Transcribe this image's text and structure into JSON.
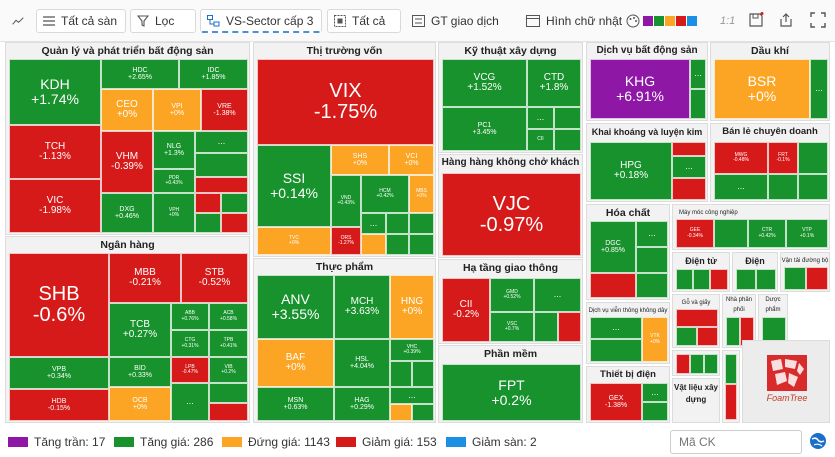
{
  "toolbar": {
    "exchange_label": "Tất cả sàn",
    "filter_label": "Lọc",
    "sector_label": "VS-Sector cấp 3",
    "scope_label": "Tất cả",
    "value_label": "GT giao dịch",
    "shape_label": "Hình chữ nhật",
    "ratio_label": "1:1",
    "palette": [
      "#8e17a6",
      "#17922c",
      "#fca423",
      "#d61a1a",
      "#1a8fe3"
    ]
  },
  "sectors": {
    "real_estate": {
      "title": "Quản lý và phát triển bất động sản",
      "tiles": [
        {
          "ticker": "KDH",
          "change": "+1.74%"
        },
        {
          "ticker": "HDC",
          "change": "+2.65%"
        },
        {
          "ticker": "IDC",
          "change": "+1.85%"
        },
        {
          "ticker": "CEO",
          "change": "+0%"
        },
        {
          "ticker": "VPI",
          "change": "+0%"
        },
        {
          "ticker": "VRE",
          "change": "-1.38%"
        },
        {
          "ticker": "TCH",
          "change": "-1.13%"
        },
        {
          "ticker": "VHM",
          "change": "-0.39%"
        },
        {
          "ticker": "NLG",
          "change": "+1.3%"
        },
        {
          "ticker": "PDR",
          "change": "+0.43%"
        },
        {
          "ticker": "VIC",
          "change": "-1.98%"
        },
        {
          "ticker": "DXG",
          "change": "+0.46%"
        },
        {
          "ticker": "VPH",
          "change": "+0%"
        }
      ]
    },
    "banking": {
      "title": "Ngân hàng",
      "tiles": [
        {
          "ticker": "SHB",
          "change": "-0.6%"
        },
        {
          "ticker": "MBB",
          "change": "-0.21%"
        },
        {
          "ticker": "STB",
          "change": "-0.52%"
        },
        {
          "ticker": "TCB",
          "change": "+0.27%"
        },
        {
          "ticker": "ABB",
          "change": "+0.76%"
        },
        {
          "ticker": "ACB",
          "change": "+0.58%"
        },
        {
          "ticker": "CTG",
          "change": "+0.31%"
        },
        {
          "ticker": "TPB",
          "change": "+0.41%"
        },
        {
          "ticker": "VPB",
          "change": "+0.34%"
        },
        {
          "ticker": "BID",
          "change": "+0.33%"
        },
        {
          "ticker": "LPB",
          "change": "-0.47%"
        },
        {
          "ticker": "VIB",
          "change": "+0.2%"
        },
        {
          "ticker": "HDB",
          "change": "-0.15%"
        },
        {
          "ticker": "OCB",
          "change": "+0%"
        }
      ]
    },
    "securities": {
      "title": "Thị trường vốn",
      "tiles": [
        {
          "ticker": "VIX",
          "change": "-1.75%"
        },
        {
          "ticker": "SSI",
          "change": "+0.14%"
        },
        {
          "ticker": "SHS",
          "change": "+0%"
        },
        {
          "ticker": "VCI",
          "change": "+0%"
        },
        {
          "ticker": "VND",
          "change": "+0.43%"
        },
        {
          "ticker": "HCM",
          "change": "+0.42%"
        },
        {
          "ticker": "MBS",
          "change": "+0%"
        },
        {
          "ticker": "TVC",
          "change": "+0%"
        },
        {
          "ticker": "ORS",
          "change": "-1.27%"
        }
      ]
    },
    "food": {
      "title": "Thực phẩm",
      "tiles": [
        {
          "ticker": "ANV",
          "change": "+3.55%"
        },
        {
          "ticker": "MCH",
          "change": "+3.63%"
        },
        {
          "ticker": "HNG",
          "change": "+0%"
        },
        {
          "ticker": "BAF",
          "change": "+0%"
        },
        {
          "ticker": "HSL",
          "change": "+4.04%"
        },
        {
          "ticker": "VHC",
          "change": "+0.39%"
        },
        {
          "ticker": "MSN",
          "change": "+0.63%"
        },
        {
          "ticker": "HAG",
          "change": "+0.29%"
        }
      ]
    },
    "construction": {
      "title": "Kỹ thuật xây dựng",
      "tiles": [
        {
          "ticker": "VCG",
          "change": "+1.52%"
        },
        {
          "ticker": "CTD",
          "change": "+1.8%"
        },
        {
          "ticker": "PC1",
          "change": "+3.45%"
        },
        {
          "ticker": "CII",
          "change": "+0.5%"
        }
      ]
    },
    "airline": {
      "title": "Hàng hàng không chở khách",
      "tiles": [
        {
          "ticker": "VJC",
          "change": "-0.97%"
        }
      ]
    },
    "transport_infra": {
      "title": "Hạ tầng giao thông",
      "tiles": [
        {
          "ticker": "CII",
          "change": "-0.2%"
        },
        {
          "ticker": "GMD",
          "change": "+0.52%"
        },
        {
          "ticker": "VSC",
          "change": "+0.7%"
        }
      ]
    },
    "software": {
      "title": "Phần mềm",
      "tiles": [
        {
          "ticker": "FPT",
          "change": "+0.2%"
        }
      ]
    },
    "re_services": {
      "title": "Dịch vụ bất động sản",
      "tiles": [
        {
          "ticker": "KHG",
          "change": "+6.91%"
        }
      ]
    },
    "oil_gas": {
      "title": "Dầu khí",
      "tiles": [
        {
          "ticker": "BSR",
          "change": "+0%"
        }
      ]
    },
    "mining": {
      "title": "Khai khoáng và luyện kim",
      "tiles": [
        {
          "ticker": "HPG",
          "change": "+0.18%"
        }
      ]
    },
    "retail": {
      "title": "Bán lẻ chuyên doanh",
      "tiles": [
        {
          "ticker": "MWG",
          "change": "-0.48%"
        },
        {
          "ticker": "FRT",
          "change": "-0.1%"
        }
      ]
    },
    "chemicals": {
      "title": "Hóa chất",
      "tiles": [
        {
          "ticker": "DGC",
          "change": "+0.85%"
        }
      ]
    },
    "industrial_machinery": {
      "title": "Máy móc công nghiệp",
      "tiles": [
        {
          "ticker": "GEE",
          "change": "-0.34%"
        },
        {
          "ticker": "CTR",
          "change": "+0.42%"
        },
        {
          "ticker": "VTP",
          "change": "+0.1%"
        }
      ]
    },
    "electronics": {
      "title": "Điện tử"
    },
    "electricity": {
      "title": "Điện"
    },
    "road_transport": {
      "title": "Vận tải đường bộ"
    },
    "telecom": {
      "title": "Dịch vụ viễn thông không dây",
      "tiles": [
        {
          "ticker": "VTK",
          "change": "+0%"
        }
      ]
    },
    "wood_paper": {
      "title": "Gỗ và giấy"
    },
    "home_builders": {
      "title": "Nhà phân phối"
    },
    "pharma": {
      "title": "Dược phẩm"
    },
    "electrical_equipment": {
      "title": "Thiết bị điện",
      "tiles": [
        {
          "ticker": "GEX",
          "change": "-1.38%"
        }
      ]
    },
    "building_materials": {
      "title": "Vật liệu xây dựng"
    }
  },
  "more_marker": "...",
  "watermark": "FoamTree",
  "legend": {
    "ceiling": {
      "label": "Tăng trần: 17",
      "color": "#8e17a6"
    },
    "up": {
      "label": "Tăng giá: 286",
      "color": "#17922c"
    },
    "flat": {
      "label": "Đứng giá: 1143",
      "color": "#fca423"
    },
    "down": {
      "label": "Giảm giá: 153",
      "color": "#d61a1a"
    },
    "floor": {
      "label": "Giảm sàn: 2",
      "color": "#1a8fe3"
    }
  },
  "search": {
    "placeholder": "Mã CK"
  }
}
